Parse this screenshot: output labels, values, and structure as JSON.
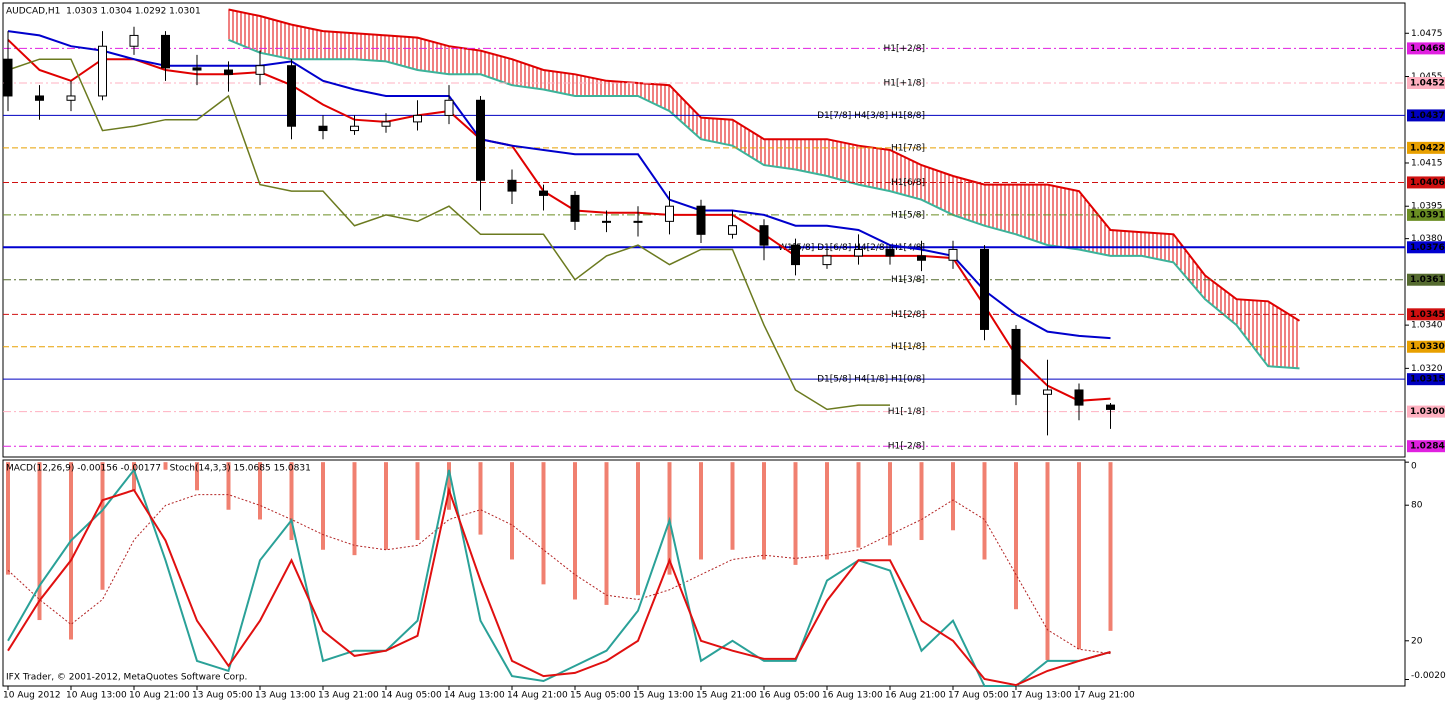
{
  "chart_data": {
    "type": "candlestick",
    "title": "AUDCAD,H1  1.0303 1.0304 1.0292 1.0301",
    "footer": "IFX Trader, © 2001-2012, MetaQuotes Software Corp.",
    "categories": [
      "10 Aug 2012",
      null,
      "10 Aug 13:00",
      null,
      "10 Aug 21:00",
      null,
      "13 Aug 05:00",
      null,
      "13 Aug 13:00",
      null,
      "13 Aug 21:00",
      null,
      "14 Aug 05:00",
      null,
      "14 Aug 13:00",
      null,
      "14 Aug 21:00",
      null,
      "15 Aug 05:00",
      null,
      "15 Aug 13:00",
      null,
      "15 Aug 21:00",
      null,
      "16 Aug 05:00",
      null,
      "16 Aug 13:00",
      null,
      "16 Aug 21:00",
      null,
      "17 Aug 05:00",
      null,
      "17 Aug 13:00",
      null,
      "17 Aug 21:00",
      null,
      null,
      null,
      null,
      null,
      null,
      null
    ],
    "ylim": [
      1.0279,
      1.0489
    ],
    "yticks": [
      1.0475,
      1.0455,
      1.0415,
      1.0395,
      {
        "value": 1.038,
        "label": "1.0380"
      },
      {
        "value": 1.034,
        "label": "1.0340"
      },
      {
        "value": 1.032,
        "label": "1.0320"
      }
    ],
    "candles": {
      "open": [
        1.0463,
        1.0446,
        1.0444,
        1.0446,
        1.0469,
        1.0474,
        1.0459,
        1.0458,
        1.0456,
        1.046,
        1.0432,
        1.043,
        1.0432,
        1.0434,
        1.0437,
        1.0444,
        1.0407,
        1.0402,
        1.04,
        1.0388,
        1.0388,
        1.0388,
        1.0395,
        1.0382,
        1.0386,
        1.0377,
        1.0368,
        1.0372,
        1.0375,
        1.0372,
        1.037,
        1.0375,
        1.0338,
        1.0308,
        1.031,
        1.0303,
        null,
        null,
        null,
        null,
        null,
        null
      ],
      "high": [
        1.0476,
        1.0451,
        1.0453,
        1.0476,
        1.0478,
        1.0476,
        1.0465,
        1.0462,
        1.0467,
        1.0463,
        1.0437,
        1.0437,
        1.0438,
        1.0444,
        1.0451,
        1.0446,
        1.0412,
        1.0405,
        1.0402,
        1.0393,
        1.0395,
        1.0402,
        1.0398,
        1.0393,
        1.0389,
        1.038,
        1.0377,
        1.0382,
        1.0377,
        1.0379,
        1.0379,
        1.0377,
        1.034,
        1.0324,
        1.0313,
        1.0304,
        null,
        null,
        null,
        null,
        null,
        null
      ],
      "low": [
        1.0439,
        1.0435,
        1.0439,
        1.0444,
        1.0465,
        1.0453,
        1.0451,
        1.0448,
        1.0451,
        1.0426,
        1.0426,
        1.0428,
        1.0429,
        1.043,
        1.0433,
        1.0393,
        1.0396,
        1.0393,
        1.0384,
        1.0383,
        1.0381,
        1.0382,
        1.0378,
        1.038,
        1.037,
        1.0363,
        1.0366,
        1.0368,
        1.0368,
        1.0365,
        1.0366,
        1.0333,
        1.0303,
        1.0289,
        1.0296,
        1.0292,
        null,
        null,
        null,
        null,
        null,
        null
      ],
      "close": [
        1.0446,
        1.0444,
        1.0446,
        1.0469,
        1.0474,
        1.0459,
        1.0458,
        1.0456,
        1.046,
        1.0432,
        1.043,
        1.0432,
        1.0434,
        1.0437,
        1.0444,
        1.0407,
        1.0402,
        1.04,
        1.0388,
        1.0388,
        1.0388,
        1.0395,
        1.0382,
        1.0386,
        1.0377,
        1.0368,
        1.0372,
        1.0375,
        1.0372,
        1.037,
        1.0375,
        1.0338,
        1.0308,
        1.031,
        1.0303,
        1.0301,
        null,
        null,
        null,
        null,
        null,
        null
      ]
    },
    "lines": [
      {
        "color": "#e00000",
        "values": [
          1.0472,
          1.0458,
          1.0453,
          1.0463,
          1.0463,
          1.0458,
          1.0456,
          1.0456,
          1.0457,
          1.0451,
          1.0442,
          1.0435,
          1.0434,
          1.0437,
          1.0439,
          1.0426,
          1.0423,
          1.0402,
          1.0393,
          1.0392,
          1.0392,
          1.0391,
          1.0391,
          1.0391,
          1.0382,
          1.0372,
          1.0372,
          1.0372,
          1.0372,
          1.0372,
          1.0371,
          1.0349,
          1.0326,
          1.0312,
          1.0305,
          1.0306,
          null,
          null,
          null,
          null,
          null,
          null
        ]
      },
      {
        "color": "#0000cc",
        "values": [
          1.0476,
          1.0474,
          1.0469,
          1.0467,
          1.0463,
          1.046,
          1.046,
          1.046,
          1.046,
          1.0462,
          1.0453,
          1.0449,
          1.0446,
          1.0446,
          1.0446,
          1.0426,
          1.0423,
          1.0421,
          1.0419,
          1.0419,
          1.0419,
          1.0398,
          1.0393,
          1.0393,
          1.0391,
          1.0386,
          1.0386,
          1.0384,
          1.0377,
          1.0375,
          1.0372,
          1.0356,
          1.0345,
          1.0337,
          1.0335,
          1.0334,
          null,
          null,
          null,
          null,
          null,
          null
        ]
      },
      {
        "color": "#6b7a1f",
        "values": [
          1.0458,
          1.0463,
          1.0463,
          1.043,
          1.0432,
          1.0435,
          1.0435,
          1.0446,
          1.0405,
          1.0402,
          1.0402,
          1.0386,
          1.0391,
          1.0388,
          1.0395,
          1.0382,
          1.0382,
          1.0382,
          1.0361,
          1.0372,
          1.0377,
          1.0368,
          1.0375,
          1.0375,
          1.034,
          1.031,
          1.0301,
          1.0303,
          1.0303,
          null,
          null,
          null,
          null,
          null,
          null,
          null,
          null,
          null,
          null,
          null,
          null,
          null
        ]
      }
    ],
    "cloud": {
      "upper_color": "#e00000",
      "lower_color": "#3cb39a",
      "upper": [
        null,
        null,
        null,
        null,
        null,
        null,
        null,
        1.0486,
        1.0483,
        1.0479,
        1.0476,
        1.0475,
        1.0474,
        1.0473,
        1.0469,
        1.0467,
        1.0463,
        1.0458,
        1.0456,
        1.0453,
        1.0452,
        1.0451,
        1.0436,
        1.0435,
        1.0426,
        1.0426,
        1.0426,
        1.0423,
        1.0421,
        1.0414,
        1.0409,
        1.0405,
        1.0405,
        1.0405,
        1.0402,
        1.0384,
        1.0383,
        1.0382,
        1.0363,
        1.0352,
        1.0351,
        1.0342
      ],
      "lower": [
        null,
        null,
        null,
        null,
        null,
        null,
        null,
        1.0472,
        1.0466,
        1.0463,
        1.0463,
        1.0463,
        1.0462,
        1.0458,
        1.0456,
        1.0456,
        1.0451,
        1.0449,
        1.0446,
        1.0446,
        1.0446,
        1.0439,
        1.0426,
        1.0423,
        1.0414,
        1.0412,
        1.0409,
        1.0405,
        1.0402,
        1.0398,
        1.0391,
        1.0386,
        1.0382,
        1.0377,
        1.0375,
        1.0372,
        1.0372,
        1.0369,
        1.0352,
        1.034,
        1.0321,
        1.032
      ]
    },
    "levels": [
      {
        "value": 1.0468,
        "text": "H1[+2/8]",
        "color": "#e020e0",
        "style": "dashdot"
      },
      {
        "value": 1.0452,
        "text": "H1[+1/8]",
        "color": "#ffb0c0",
        "style": "dashdot"
      },
      {
        "value": 1.0437,
        "text": "D1[7/8] H4[3/8] H1[8/8]",
        "color": "#0000c0",
        "style": "solid"
      },
      {
        "value": 1.0422,
        "text": "H1[7/8]",
        "color": "#e8a000",
        "style": "dash"
      },
      {
        "value": 1.0406,
        "text": "H1[6/8]",
        "color": "#d01010",
        "style": "dash"
      },
      {
        "value": 1.0391,
        "text": "H1[5/8]",
        "color": "#6b8e23",
        "style": "dashdot"
      },
      {
        "value": 1.0376,
        "text": "W1[5/8] D1[6/8] H4[2/8] H1[4/8]",
        "color": "#0000d0",
        "style": "thick"
      },
      {
        "value": 1.0361,
        "text": "H1[3/8]",
        "color": "#556b2f",
        "style": "dashdot"
      },
      {
        "value": 1.0345,
        "text": "H1[2/8]",
        "color": "#d01010",
        "style": "dash"
      },
      {
        "value": 1.033,
        "label": "1.0330",
        "text": "H1[1/8]",
        "color": "#e8a000",
        "style": "dash"
      },
      {
        "value": 1.0315,
        "text": "D1[5/8] H4[1/8] H1[0/8]",
        "color": "#0000c0",
        "style": "solid"
      },
      {
        "value": 1.03,
        "label": "1.0300",
        "text": "H1[-1/8]",
        "color": "#ffb0c0",
        "style": "dashdot"
      },
      {
        "value": 1.0284,
        "text": "H1[-2/8]",
        "color": "#e020e0",
        "style": "dashdot"
      }
    ],
    "indicator": {
      "title": "MACD(12,26,9) -0.00156 -0.00177   Stoch(14,3,3) 15.0685 15.0831",
      "ylim": [
        0,
        100
      ],
      "yticks": [
        80,
        20
      ],
      "y2lim": [
        -0.00207,
        2e-05
      ],
      "y2ticks": [
        0,
        -0.00201
      ],
      "macd": {
        "axis": "y2",
        "color": "#f08070",
        "values": [
          -0.00104,
          -0.00146,
          -0.00164,
          -0.00118,
          -0.00026,
          -7e-05,
          -0.00026,
          -0.00044,
          -0.00053,
          -0.00072,
          -0.00081,
          -0.00086,
          -0.00081,
          -0.00072,
          -0.00044,
          -0.00067,
          -0.0009,
          -0.00113,
          -0.00127,
          -0.00132,
          -0.00123,
          -0.00104,
          -0.0009,
          -0.00081,
          -0.0009,
          -0.00095,
          -0.0009,
          -0.00079,
          -0.00077,
          -0.00072,
          -0.00063,
          -0.0009,
          -0.00136,
          -0.00183,
          -0.00173,
          -0.00156,
          null,
          null,
          null,
          null,
          null,
          null
        ]
      },
      "macd_signal": {
        "axis": "y2",
        "color": "#b22222",
        "values": [
          -0.001,
          -0.00127,
          -0.0015,
          -0.00127,
          -0.00072,
          -0.0004,
          -0.0003,
          -0.0003,
          -0.0004,
          -0.00053,
          -0.00067,
          -0.00077,
          -0.00081,
          -0.00077,
          -0.00053,
          -0.00044,
          -0.00058,
          -0.00081,
          -0.00104,
          -0.00123,
          -0.00127,
          -0.00118,
          -0.00104,
          -0.0009,
          -0.00086,
          -0.00089,
          -0.00086,
          -0.00081,
          -0.00067,
          -0.00053,
          -0.00035,
          -0.00053,
          -0.00104,
          -0.00155,
          -0.00173,
          -0.00177,
          null,
          null,
          null,
          null,
          null,
          null
        ]
      },
      "stoch": [
        {
          "color": "#2aa198",
          "values": [
            20,
            44.4,
            64.4,
            77.8,
            95.6,
            55.6,
            11.1,
            6.7,
            55.6,
            73.3,
            11.1,
            15.6,
            15.6,
            28.9,
            95.6,
            28.9,
            4.4,
            2.2,
            8.9,
            15.6,
            33.3,
            73.3,
            11.1,
            20,
            11.1,
            11.1,
            46.7,
            55.6,
            51.1,
            15.6,
            28.9,
            0,
            0,
            11.1,
            11.1,
            15.0685,
            null,
            null,
            null,
            null,
            null,
            null
          ]
        },
        {
          "color": "#e01010",
          "values": [
            15.6,
            37.8,
            55.6,
            82.2,
            86.7,
            64.4,
            28.9,
            8.9,
            28.9,
            55.6,
            24.4,
            13.3,
            15.6,
            22.2,
            86.7,
            46.7,
            11.1,
            4.4,
            5.8,
            11.1,
            20,
            55.6,
            20,
            15.6,
            12,
            12,
            37.8,
            55.6,
            55.6,
            28.9,
            20,
            3.1,
            0.4,
            6.7,
            11.1,
            15.0831,
            null,
            null,
            null,
            null,
            null,
            null
          ]
        }
      ]
    }
  }
}
